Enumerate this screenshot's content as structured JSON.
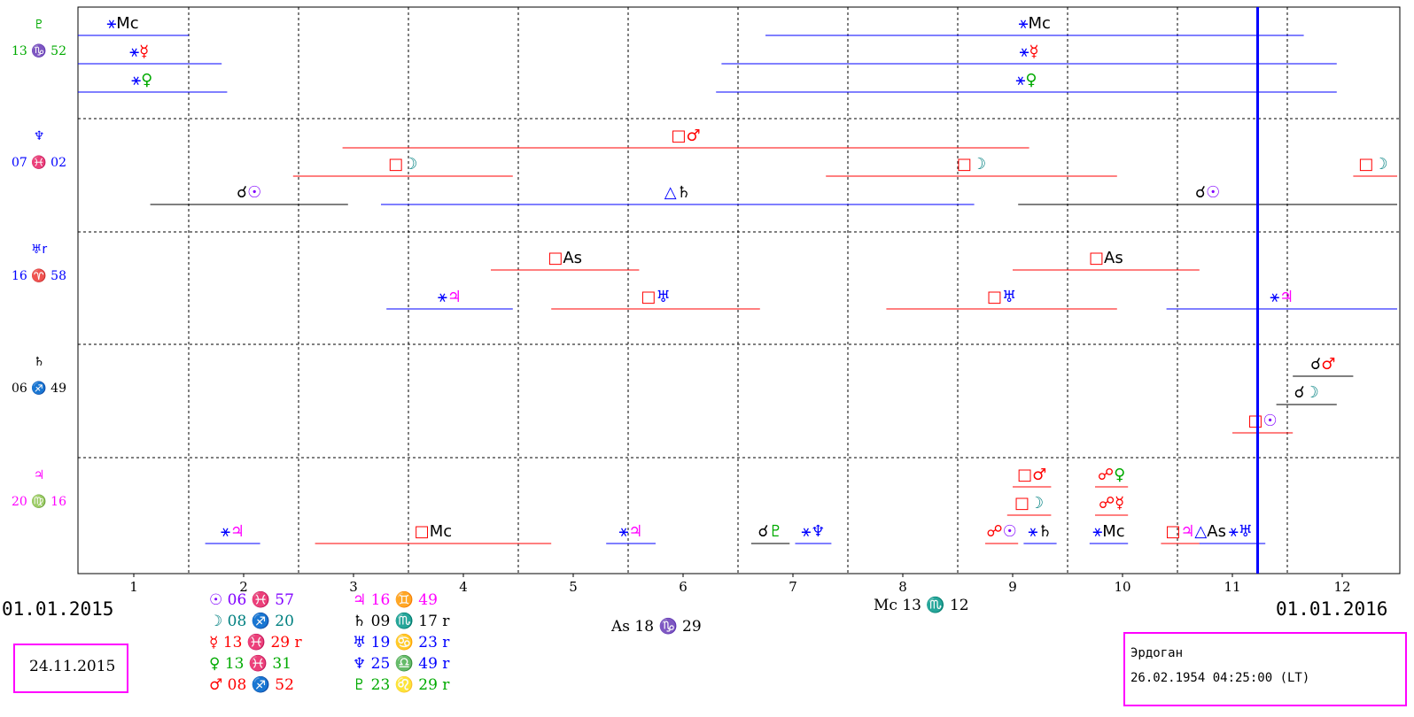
{
  "colors": {
    "grid": "#000000",
    "transit_line": "#0000ff",
    "blue": "#0000ff",
    "red": "#ff0000",
    "black": "#000000",
    "green": "#00aa00",
    "teal": "#008080",
    "magenta": "#ff00ff",
    "purple": "#8000ff",
    "box_border": "#ff00ff"
  },
  "footer": {
    "start_date": "01.01.2015",
    "end_date": "01.01.2016",
    "current_date": "24.11.2015",
    "mc": "Mc 13 ♏ 12",
    "as": "As 18 ♑ 29"
  },
  "person": {
    "name": "Эрдоган",
    "birth": "26.02.1954 04:25:00 (LT)"
  },
  "natal_positions": [
    {
      "text": "☉ 06 ♓ 57",
      "color": "purple"
    },
    {
      "text": "☽ 08 ♐ 20",
      "color": "teal"
    },
    {
      "text": "☿ 13 ♓ 29 r",
      "color": "red"
    },
    {
      "text": "♀ 13 ♓ 31",
      "color": "green"
    },
    {
      "text": "♂ 08 ♐ 52",
      "color": "red"
    },
    {
      "text": "♃ 16 ♊ 49",
      "color": "magenta"
    },
    {
      "text": "♄ 09 ♏ 17 r",
      "color": "black"
    },
    {
      "text": "♅ 19 ♋ 23 r",
      "color": "blue"
    },
    {
      "text": "♆ 25 ♎ 49 r",
      "color": "blue"
    },
    {
      "text": "♇ 23 ♌ 29 r",
      "color": "green"
    }
  ],
  "chart_data": {
    "type": "timeline",
    "x_ticks": [
      "1",
      "2",
      "3",
      "4",
      "5",
      "6",
      "7",
      "8",
      "9",
      "10",
      "11",
      "12"
    ],
    "xlim": [
      0.5,
      12.5
    ],
    "current_x": 11.23,
    "rows": [
      {
        "planet": "♇",
        "position": "13 ♑ 52",
        "color": "green"
      },
      {
        "planet": "♆",
        "position": "07 ♓ 02",
        "color": "blue"
      },
      {
        "planet": "♅r",
        "position": "16 ♈ 58",
        "color": "blue"
      },
      {
        "planet": "♄",
        "position": "06 ♐ 49",
        "color": "black"
      },
      {
        "planet": "♃",
        "position": "20 ♍ 16",
        "color": "magenta"
      }
    ],
    "aspects": [
      {
        "row": 0,
        "lane": 0,
        "x1": 0.3,
        "x2": 1.5,
        "aspect": "⚹",
        "target": "Mc",
        "color": "blue",
        "tcolor": "black"
      },
      {
        "row": 0,
        "lane": 1,
        "x1": 0.3,
        "x2": 1.8,
        "aspect": "⚹",
        "target": "☿",
        "color": "blue",
        "tcolor": "red"
      },
      {
        "row": 0,
        "lane": 2,
        "x1": 0.3,
        "x2": 1.85,
        "aspect": "⚹",
        "target": "♀",
        "color": "blue",
        "tcolor": "green"
      },
      {
        "row": 0,
        "lane": 0,
        "x1": 6.75,
        "x2": 11.65,
        "aspect": "⚹",
        "target": "Mc",
        "color": "blue",
        "tcolor": "black"
      },
      {
        "row": 0,
        "lane": 1,
        "x1": 6.35,
        "x2": 11.95,
        "aspect": "⚹",
        "target": "☿",
        "color": "blue",
        "tcolor": "red"
      },
      {
        "row": 0,
        "lane": 2,
        "x1": 6.3,
        "x2": 11.95,
        "aspect": "⚹",
        "target": "♀",
        "color": "blue",
        "tcolor": "green"
      },
      {
        "row": 1,
        "lane": 0,
        "x1": 2.9,
        "x2": 9.15,
        "aspect": "□",
        "target": "♂",
        "color": "red",
        "tcolor": "red"
      },
      {
        "row": 1,
        "lane": 1,
        "x1": 2.45,
        "x2": 4.45,
        "aspect": "□",
        "target": "☽",
        "color": "red",
        "tcolor": "teal"
      },
      {
        "row": 1,
        "lane": 1,
        "x1": 7.3,
        "x2": 9.95,
        "aspect": "□",
        "target": "☽",
        "color": "red",
        "tcolor": "teal"
      },
      {
        "row": 1,
        "lane": 1,
        "x1": 12.1,
        "x2": 12.5,
        "aspect": "□",
        "target": "☽",
        "color": "red",
        "tcolor": "teal"
      },
      {
        "row": 1,
        "lane": 2,
        "x1": 1.15,
        "x2": 2.95,
        "aspect": "☌",
        "target": "☉",
        "color": "black",
        "tcolor": "purple"
      },
      {
        "row": 1,
        "lane": 2,
        "x1": 3.25,
        "x2": 8.65,
        "aspect": "△",
        "target": "♄",
        "color": "blue",
        "tcolor": "black"
      },
      {
        "row": 1,
        "lane": 2,
        "x1": 9.05,
        "x2": 12.5,
        "aspect": "☌",
        "target": "☉",
        "color": "black",
        "tcolor": "purple"
      },
      {
        "row": 2,
        "lane": 0,
        "x1": 4.25,
        "x2": 5.6,
        "aspect": "□",
        "target": "As",
        "color": "red",
        "tcolor": "black"
      },
      {
        "row": 2,
        "lane": 0,
        "x1": 9.0,
        "x2": 10.7,
        "aspect": "□",
        "target": "As",
        "color": "red",
        "tcolor": "black"
      },
      {
        "row": 2,
        "lane": 1,
        "x1": 3.3,
        "x2": 4.45,
        "aspect": "⚹",
        "target": "♃",
        "color": "blue",
        "tcolor": "magenta"
      },
      {
        "row": 2,
        "lane": 1,
        "x1": 4.8,
        "x2": 6.7,
        "aspect": "□",
        "target": "♅",
        "color": "red",
        "tcolor": "blue"
      },
      {
        "row": 2,
        "lane": 1,
        "x1": 7.85,
        "x2": 9.95,
        "aspect": "□",
        "target": "♅",
        "color": "red",
        "tcolor": "blue"
      },
      {
        "row": 2,
        "lane": 1,
        "x1": 10.4,
        "x2": 12.5,
        "aspect": "⚹",
        "target": "♃",
        "color": "blue",
        "tcolor": "magenta"
      },
      {
        "row": 3,
        "lane": 0,
        "x1": 11.55,
        "x2": 12.1,
        "aspect": "☌",
        "target": "♂",
        "color": "black",
        "tcolor": "red"
      },
      {
        "row": 3,
        "lane": 1,
        "x1": 11.4,
        "x2": 11.95,
        "aspect": "☌",
        "target": "☽",
        "color": "black",
        "tcolor": "teal"
      },
      {
        "row": 3,
        "lane": 2,
        "x1": 11.0,
        "x2": 11.55,
        "aspect": "□",
        "target": "☉",
        "color": "red",
        "tcolor": "purple"
      },
      {
        "row": 4,
        "lane": 0,
        "x1": 9.0,
        "x2": 9.35,
        "aspect": "□",
        "target": "♂",
        "color": "red",
        "tcolor": "red"
      },
      {
        "row": 4,
        "lane": 0,
        "x1": 9.75,
        "x2": 10.05,
        "aspect": "☍",
        "target": "♀",
        "color": "red",
        "tcolor": "green"
      },
      {
        "row": 4,
        "lane": 1,
        "x1": 8.95,
        "x2": 9.35,
        "aspect": "□",
        "target": "☽",
        "color": "red",
        "tcolor": "teal"
      },
      {
        "row": 4,
        "lane": 1,
        "x1": 9.75,
        "x2": 10.05,
        "aspect": "☍",
        "target": "☿",
        "color": "red",
        "tcolor": "red"
      },
      {
        "row": 4,
        "lane": 2,
        "x1": 10.6,
        "x2": 11.0,
        "aspect": "△",
        "target": "As",
        "color": "blue",
        "tcolor": "black"
      },
      {
        "row": 4,
        "lane": 3,
        "x1": 1.65,
        "x2": 2.15,
        "aspect": "⚹",
        "target": "♃",
        "color": "blue",
        "tcolor": "magenta"
      },
      {
        "row": 4,
        "lane": 3,
        "x1": 2.65,
        "x2": 4.8,
        "aspect": "□",
        "target": "Mc",
        "color": "red",
        "tcolor": "black"
      },
      {
        "row": 4,
        "lane": 3,
        "x1": 5.3,
        "x2": 5.75,
        "aspect": "⚹",
        "target": "♃",
        "color": "blue",
        "tcolor": "magenta"
      },
      {
        "row": 4,
        "lane": 3,
        "x1": 6.62,
        "x2": 6.97,
        "aspect": "☌",
        "target": "♇",
        "color": "black",
        "tcolor": "green"
      },
      {
        "row": 4,
        "lane": 3,
        "x1": 7.02,
        "x2": 7.35,
        "aspect": "⚹",
        "target": "♆",
        "color": "blue",
        "tcolor": "blue"
      },
      {
        "row": 4,
        "lane": 3,
        "x1": 8.75,
        "x2": 9.05,
        "aspect": "☍",
        "target": "☉",
        "color": "red",
        "tcolor": "purple"
      },
      {
        "row": 4,
        "lane": 3,
        "x1": 9.1,
        "x2": 9.4,
        "aspect": "⚹",
        "target": "♄",
        "color": "blue",
        "tcolor": "black"
      },
      {
        "row": 4,
        "lane": 3,
        "x1": 9.7,
        "x2": 10.05,
        "aspect": "⚹",
        "target": "Mc",
        "color": "blue",
        "tcolor": "black"
      },
      {
        "row": 4,
        "lane": 3,
        "x1": 10.35,
        "x2": 10.7,
        "aspect": "□",
        "target": "♃",
        "color": "red",
        "tcolor": "magenta"
      },
      {
        "row": 4,
        "lane": 3,
        "x1": 10.85,
        "x2": 11.3,
        "aspect": "⚹",
        "target": "♅",
        "color": "blue",
        "tcolor": "blue"
      }
    ]
  }
}
